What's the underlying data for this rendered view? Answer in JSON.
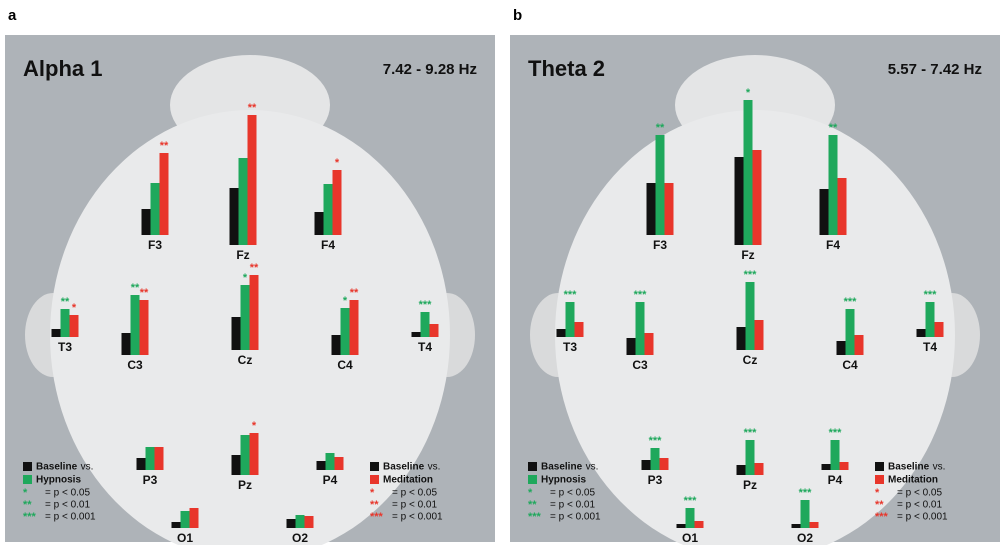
{
  "chart_data": [
    {
      "type": "bar",
      "panel_label": "a",
      "title": "Alpha 1",
      "subtitle": "7.42 - 9.28 Hz",
      "categories": [
        "F3",
        "Fz",
        "F4",
        "T3",
        "C3",
        "Cz",
        "C4",
        "T4",
        "P3",
        "Pz",
        "P4",
        "O1",
        "O2"
      ],
      "series": [
        {
          "name": "Baseline",
          "color": "#111111",
          "values": [
            26,
            57,
            23,
            8,
            22,
            33,
            20,
            5,
            12,
            20,
            9,
            6,
            9
          ],
          "significance": [
            null,
            null,
            null,
            null,
            null,
            null,
            null,
            null,
            null,
            null,
            null,
            null,
            null
          ]
        },
        {
          "name": "Hypnosis",
          "color": "#1fa85c",
          "values": [
            52,
            87,
            51,
            28,
            60,
            65,
            47,
            25,
            23,
            40,
            17,
            17,
            13
          ],
          "significance": [
            null,
            null,
            null,
            "**",
            "**",
            "*",
            "*",
            "***",
            null,
            null,
            null,
            null,
            null
          ]
        },
        {
          "name": "Meditation",
          "color": "#e8362b",
          "values": [
            82,
            130,
            65,
            22,
            55,
            75,
            55,
            13,
            23,
            42,
            13,
            20,
            12
          ],
          "significance": [
            "**",
            "**",
            "*",
            "*",
            "**",
            "**",
            "**",
            null,
            null,
            "*",
            null,
            null,
            null
          ]
        }
      ],
      "vs_label": "vs.",
      "significance_key": [
        {
          "symbol": "*",
          "label": "= p < 0.05"
        },
        {
          "symbol": "**",
          "label": "= p < 0.01"
        },
        {
          "symbol": "***",
          "label": "= p < 0.001"
        }
      ]
    },
    {
      "type": "bar",
      "panel_label": "b",
      "title": "Theta 2",
      "subtitle": "5.57 - 7.42 Hz",
      "categories": [
        "F3",
        "Fz",
        "F4",
        "T3",
        "C3",
        "Cz",
        "C4",
        "T4",
        "P3",
        "Pz",
        "P4",
        "O1",
        "O2"
      ],
      "series": [
        {
          "name": "Baseline",
          "color": "#111111",
          "values": [
            52,
            88,
            46,
            8,
            17,
            23,
            14,
            8,
            10,
            10,
            6,
            4,
            4
          ],
          "significance": [
            null,
            null,
            null,
            null,
            null,
            null,
            null,
            null,
            null,
            null,
            null,
            null,
            null
          ]
        },
        {
          "name": "Hypnosis",
          "color": "#1fa85c",
          "values": [
            100,
            145,
            100,
            35,
            53,
            68,
            46,
            35,
            22,
            35,
            30,
            20,
            28
          ],
          "significance": [
            "**",
            "*",
            "**",
            "***",
            "***",
            "***",
            "***",
            "***",
            "***",
            "***",
            "***",
            "***",
            "***"
          ]
        },
        {
          "name": "Meditation",
          "color": "#e8362b",
          "values": [
            52,
            95,
            57,
            15,
            22,
            30,
            20,
            15,
            12,
            12,
            8,
            7,
            6
          ],
          "significance": [
            null,
            null,
            null,
            null,
            null,
            null,
            null,
            null,
            null,
            null,
            null,
            null,
            null
          ]
        }
      ],
      "vs_label": "vs.",
      "significance_key": [
        {
          "symbol": "*",
          "label": "= p < 0.05"
        },
        {
          "symbol": "**",
          "label": "= p < 0.01"
        },
        {
          "symbol": "***",
          "label": "= p < 0.001"
        }
      ]
    }
  ]
}
